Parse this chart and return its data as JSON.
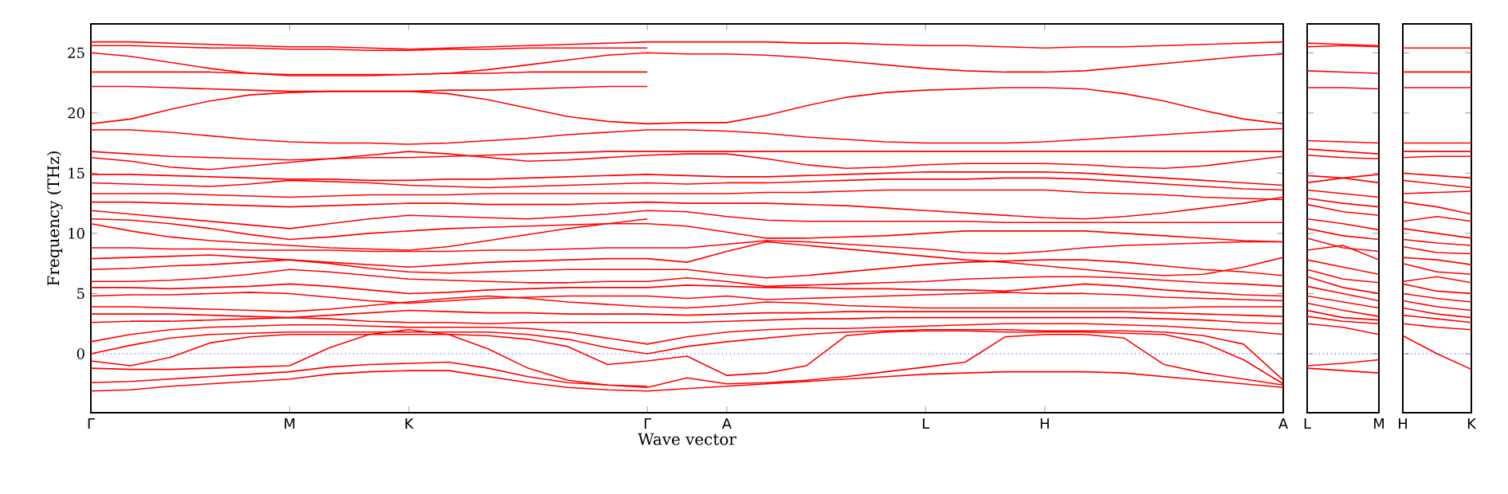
{
  "chart_data": [
    {
      "type": "line",
      "xlabel": "Wave vector",
      "ylabel": "Frequency (THz)",
      "ylim": [
        -4.9,
        27.4
      ],
      "categories": [
        "Γ",
        null,
        null,
        null,
        null,
        "M",
        null,
        null,
        "K",
        null,
        null,
        null,
        null,
        null,
        "Γ",
        null,
        "A",
        null,
        null,
        null,
        null,
        "L",
        null,
        null,
        "H",
        null,
        null,
        null,
        null,
        null,
        "A"
      ],
      "yticks": [
        0,
        5,
        10,
        15,
        20,
        25
      ],
      "ref_lines": [
        {
          "axis": "y",
          "value": 0,
          "color": "#0000ff",
          "line_style": "dotted"
        }
      ],
      "line_style": "solid",
      "series": [
        {
          "values": [
            25.9,
            25.9,
            25.8,
            25.7,
            25.6,
            25.5,
            25.5,
            25.4,
            25.3,
            25.4,
            25.5,
            25.6,
            25.7,
            25.8,
            25.9,
            25.9,
            25.9,
            25.9,
            25.8,
            25.8,
            25.7,
            25.6,
            25.6,
            25.5,
            25.4,
            25.5,
            25.5,
            25.6,
            25.7,
            25.8,
            25.9
          ],
          "color": "#ff0000"
        },
        {
          "values": [
            25.6,
            25.6,
            25.5,
            25.4,
            25.4,
            25.3,
            25.3,
            25.2,
            25.2,
            25.3,
            25.3,
            25.4,
            25.4,
            25.4,
            25.4,
            null,
            null,
            null,
            null,
            null,
            null,
            null,
            null,
            null,
            null,
            null,
            null,
            null,
            null,
            null,
            null
          ],
          "color": "#ff0000"
        },
        {
          "values": [
            25.0,
            24.7,
            24.2,
            23.7,
            23.3,
            23.1,
            23.1,
            23.1,
            23.2,
            23.3,
            23.6,
            24.0,
            24.4,
            24.8,
            25.0,
            24.9,
            24.9,
            24.8,
            24.6,
            24.3,
            24.0,
            23.7,
            23.5,
            23.4,
            23.4,
            23.5,
            23.8,
            24.1,
            24.4,
            24.7,
            24.9
          ],
          "color": "#ff0000"
        },
        {
          "values": [
            23.4,
            23.4,
            23.4,
            23.4,
            23.3,
            23.2,
            23.2,
            23.2,
            23.2,
            23.3,
            23.3,
            23.4,
            23.4,
            23.4,
            23.4,
            null,
            null,
            null,
            null,
            null,
            null,
            null,
            null,
            null,
            null,
            null,
            null,
            null,
            null,
            null,
            null
          ],
          "color": "#ff0000"
        },
        {
          "values": [
            22.2,
            22.2,
            22.1,
            22.0,
            21.9,
            21.8,
            21.8,
            21.8,
            21.8,
            21.9,
            21.9,
            22.0,
            22.1,
            22.2,
            22.2,
            null,
            null,
            null,
            null,
            null,
            null,
            null,
            null,
            null,
            null,
            null,
            null,
            null,
            null,
            null,
            null
          ],
          "color": "#ff0000"
        },
        {
          "values": [
            19.1,
            19.5,
            20.3,
            21.0,
            21.5,
            21.7,
            21.8,
            21.8,
            21.8,
            21.6,
            21.1,
            20.4,
            19.7,
            19.3,
            19.1,
            19.2,
            19.2,
            19.8,
            20.6,
            21.3,
            21.7,
            21.9,
            22.0,
            22.1,
            22.1,
            22.0,
            21.6,
            21.0,
            20.2,
            19.5,
            19.1
          ],
          "color": "#ff0000"
        },
        {
          "values": [
            18.6,
            18.6,
            18.4,
            18.1,
            17.8,
            17.6,
            17.5,
            17.5,
            17.4,
            17.5,
            17.7,
            17.9,
            18.2,
            18.4,
            18.6,
            18.6,
            18.5,
            18.3,
            18.0,
            17.8,
            17.6,
            17.5,
            17.5,
            17.5,
            17.6,
            17.8,
            18.0,
            18.2,
            18.4,
            18.6,
            18.7
          ],
          "color": "#ff0000"
        },
        {
          "values": [
            16.8,
            16.6,
            16.4,
            16.3,
            16.2,
            16.1,
            16.2,
            16.3,
            16.3,
            16.4,
            16.5,
            16.6,
            16.7,
            16.8,
            16.8,
            16.8,
            16.8,
            16.8,
            16.8,
            16.8,
            16.8,
            16.8,
            16.8,
            16.8,
            16.8,
            16.8,
            16.8,
            16.8,
            16.8,
            16.8,
            16.8
          ],
          "color": "#ff0000"
        },
        {
          "values": [
            16.3,
            16.0,
            15.5,
            15.3,
            15.6,
            15.9,
            16.2,
            16.5,
            16.8,
            16.6,
            16.3,
            16.0,
            16.1,
            16.3,
            16.5,
            16.6,
            16.6,
            16.2,
            15.7,
            15.4,
            15.5,
            15.7,
            15.8,
            15.8,
            15.8,
            15.7,
            15.5,
            15.4,
            15.6,
            16.0,
            16.4
          ],
          "color": "#ff0000"
        },
        {
          "values": [
            14.9,
            14.9,
            14.8,
            14.7,
            14.6,
            14.5,
            14.5,
            14.4,
            14.4,
            14.5,
            14.5,
            14.6,
            14.7,
            14.8,
            14.9,
            14.8,
            14.7,
            14.7,
            14.8,
            14.9,
            15.0,
            15.1,
            15.1,
            15.1,
            15.1,
            15.0,
            14.8,
            14.6,
            14.4,
            14.2,
            14.0
          ],
          "color": "#ff0000"
        },
        {
          "values": [
            14.2,
            14.1,
            14.0,
            13.9,
            14.1,
            14.4,
            14.3,
            14.2,
            14.0,
            13.9,
            13.8,
            13.9,
            14.0,
            14.1,
            14.2,
            14.1,
            14.2,
            14.2,
            14.3,
            14.4,
            14.5,
            14.5,
            14.5,
            14.6,
            14.6,
            14.5,
            14.3,
            14.1,
            13.9,
            13.7,
            13.6
          ],
          "color": "#ff0000"
        },
        {
          "values": [
            13.3,
            13.3,
            13.3,
            13.2,
            13.1,
            13.0,
            13.1,
            13.2,
            13.2,
            13.2,
            13.3,
            13.3,
            13.3,
            13.3,
            13.3,
            13.3,
            13.3,
            13.4,
            13.4,
            13.5,
            13.6,
            13.6,
            13.6,
            13.6,
            13.6,
            13.4,
            13.3,
            13.2,
            13.0,
            12.9,
            12.8
          ],
          "color": "#ff0000"
        },
        {
          "values": [
            12.6,
            12.6,
            12.5,
            12.4,
            12.3,
            12.2,
            12.3,
            12.4,
            12.5,
            12.5,
            12.4,
            12.4,
            12.4,
            12.5,
            12.6,
            12.5,
            12.5,
            12.5,
            12.4,
            12.3,
            12.1,
            11.9,
            11.7,
            11.5,
            11.3,
            11.2,
            11.4,
            11.7,
            12.1,
            12.5,
            13.0
          ],
          "color": "#ff0000"
        },
        {
          "values": [
            11.9,
            11.6,
            11.3,
            11.0,
            10.7,
            10.4,
            10.8,
            11.2,
            11.5,
            11.4,
            11.3,
            11.2,
            11.4,
            11.6,
            11.9,
            11.8,
            11.4,
            11.1,
            11.0,
            11.0,
            11.0,
            11.0,
            11.0,
            10.9,
            10.9,
            10.9,
            10.9,
            10.9,
            10.9,
            10.9,
            10.9
          ],
          "color": "#ff0000"
        },
        {
          "values": [
            11.2,
            11.1,
            10.8,
            10.4,
            9.9,
            9.5,
            9.7,
            10.0,
            10.2,
            10.4,
            10.5,
            10.6,
            10.7,
            10.8,
            10.8,
            10.6,
            10.1,
            9.6,
            9.6,
            9.7,
            9.8,
            10.0,
            10.2,
            10.2,
            10.2,
            10.2,
            10.0,
            9.8,
            9.6,
            9.4,
            9.3
          ],
          "color": "#ff0000"
        },
        {
          "values": [
            10.8,
            10.2,
            9.7,
            9.4,
            9.2,
            9.0,
            8.8,
            8.7,
            8.6,
            8.9,
            9.4,
            9.9,
            10.4,
            10.8,
            11.2,
            null,
            null,
            null,
            null,
            null,
            null,
            null,
            null,
            null,
            null,
            null,
            null,
            null,
            null,
            null,
            null
          ],
          "color": "#ff0000"
        },
        {
          "values": [
            8.8,
            8.8,
            8.7,
            8.7,
            8.6,
            8.6,
            8.6,
            8.5,
            8.5,
            8.5,
            8.6,
            8.6,
            8.7,
            8.8,
            8.8,
            8.8,
            9.1,
            9.4,
            9.3,
            9.1,
            8.9,
            8.7,
            8.4,
            8.3,
            8.5,
            8.8,
            9.0,
            9.1,
            9.2,
            9.3,
            9.3
          ],
          "color": "#ff0000"
        },
        {
          "values": [
            7.9,
            8.0,
            8.1,
            8.2,
            8.0,
            7.8,
            7.6,
            7.4,
            7.2,
            7.4,
            7.6,
            7.7,
            7.8,
            7.9,
            7.9,
            7.6,
            8.5,
            9.3,
            9.0,
            8.7,
            8.4,
            8.1,
            7.8,
            7.6,
            7.3,
            7.0,
            6.7,
            6.5,
            6.6,
            7.2,
            8.0
          ],
          "color": "#ff0000"
        },
        {
          "values": [
            7.0,
            7.1,
            7.3,
            7.4,
            7.6,
            7.8,
            7.5,
            7.1,
            6.8,
            6.7,
            6.8,
            6.9,
            7.0,
            7.0,
            7.0,
            7.0,
            6.6,
            6.3,
            6.5,
            6.8,
            7.1,
            7.4,
            7.6,
            7.7,
            7.8,
            7.8,
            7.6,
            7.3,
            7.0,
            6.8,
            6.5
          ],
          "color": "#ff0000"
        },
        {
          "values": [
            6.0,
            6.0,
            6.1,
            6.3,
            6.6,
            7.0,
            6.8,
            6.5,
            6.2,
            6.1,
            6.0,
            5.9,
            5.9,
            6.0,
            6.0,
            6.3,
            6.0,
            5.6,
            5.7,
            5.8,
            5.9,
            6.0,
            6.2,
            6.3,
            6.4,
            6.4,
            6.3,
            6.1,
            5.9,
            5.8,
            5.6
          ],
          "color": "#ff0000"
        },
        {
          "values": [
            5.5,
            5.5,
            5.4,
            5.5,
            5.6,
            5.8,
            5.6,
            5.3,
            5.0,
            5.1,
            5.3,
            5.4,
            5.5,
            5.5,
            5.5,
            5.7,
            5.6,
            5.5,
            5.5,
            5.4,
            5.4,
            5.3,
            5.3,
            5.2,
            5.5,
            5.8,
            5.6,
            5.3,
            5.1,
            4.9,
            4.8
          ],
          "color": "#ff0000"
        },
        {
          "values": [
            4.8,
            4.9,
            4.9,
            5.0,
            5.1,
            5.0,
            4.7,
            4.4,
            4.2,
            4.4,
            4.6,
            4.7,
            4.8,
            4.8,
            4.8,
            4.6,
            4.8,
            4.5,
            4.6,
            4.7,
            4.8,
            4.9,
            5.0,
            5.1,
            5.0,
            5.0,
            4.9,
            4.7,
            4.6,
            4.5,
            4.4
          ],
          "color": "#ff0000"
        },
        {
          "values": [
            3.9,
            3.9,
            3.8,
            3.7,
            3.6,
            3.5,
            3.7,
            4.0,
            4.3,
            4.6,
            4.8,
            4.6,
            4.3,
            4.1,
            3.9,
            3.8,
            4.0,
            4.3,
            4.2,
            4.0,
            3.9,
            3.8,
            3.8,
            3.8,
            3.8,
            3.8,
            3.8,
            3.8,
            3.9,
            3.9,
            3.9
          ],
          "color": "#ff0000"
        },
        {
          "values": [
            3.3,
            3.3,
            3.3,
            3.2,
            3.1,
            3.0,
            3.2,
            3.4,
            3.6,
            3.5,
            3.4,
            3.4,
            3.3,
            3.3,
            3.3,
            3.2,
            3.3,
            3.4,
            3.4,
            3.5,
            3.5,
            3.5,
            3.5,
            3.5,
            3.5,
            3.5,
            3.5,
            3.4,
            3.3,
            3.2,
            3.1
          ],
          "color": "#ff0000"
        },
        {
          "values": [
            2.6,
            2.7,
            2.7,
            2.8,
            2.9,
            3.0,
            2.9,
            2.7,
            2.6,
            2.6,
            2.5,
            2.6,
            2.6,
            2.6,
            2.6,
            2.6,
            2.7,
            2.8,
            2.9,
            2.9,
            3.0,
            3.0,
            3.0,
            3.0,
            3.0,
            3.0,
            3.0,
            2.9,
            2.8,
            2.6,
            2.5
          ],
          "color": "#ff0000"
        },
        {
          "values": [
            1.0,
            1.6,
            2.0,
            2.2,
            2.3,
            2.4,
            2.4,
            2.3,
            2.2,
            2.2,
            2.2,
            2.1,
            1.8,
            1.3,
            0.8,
            1.4,
            1.8,
            2.0,
            2.1,
            2.1,
            2.2,
            2.3,
            2.4,
            2.5,
            2.5,
            2.5,
            2.4,
            2.3,
            2.1,
            1.9,
            1.6
          ],
          "color": "#ff0000"
        },
        {
          "values": [
            0.0,
            0.7,
            1.3,
            1.6,
            1.7,
            1.8,
            1.8,
            1.8,
            1.8,
            1.8,
            1.8,
            1.6,
            1.2,
            0.5,
            0.0,
            0.6,
            1.0,
            1.3,
            1.6,
            1.8,
            1.9,
            2.0,
            2.0,
            2.0,
            1.9,
            1.9,
            1.9,
            1.8,
            1.5,
            0.8,
            -2.2
          ],
          "color": "#ff0000"
        },
        {
          "values": [
            -0.6,
            -1.0,
            -0.3,
            0.9,
            1.4,
            1.6,
            1.6,
            1.6,
            1.6,
            1.6,
            1.5,
            1.2,
            0.6,
            -0.9,
            -0.6,
            -0.2,
            -1.8,
            -1.6,
            -1.0,
            1.5,
            1.8,
            1.9,
            1.9,
            1.8,
            1.8,
            1.8,
            1.7,
            1.6,
            0.9,
            -0.5,
            -2.5
          ],
          "color": "#ff0000"
        },
        {
          "values": [
            -1.2,
            -1.3,
            -1.3,
            -1.2,
            -1.1,
            -1.0,
            0.5,
            1.6,
            2.0,
            1.6,
            0.4,
            -1.2,
            -2.2,
            -2.6,
            -2.8,
            -2.0,
            -2.5,
            -2.4,
            -2.2,
            -1.9,
            -1.5,
            -1.1,
            -0.7,
            1.4,
            1.6,
            1.6,
            1.3,
            -0.9,
            -1.6,
            -2.1,
            -2.6
          ],
          "color": "#ff0000"
        },
        {
          "values": [
            -3.1,
            -3.0,
            -2.7,
            -2.5,
            -2.3,
            -2.1,
            -1.7,
            -1.5,
            -1.4,
            -1.4,
            -1.9,
            -2.4,
            -2.8,
            -3.0,
            -3.1,
            -2.9,
            -2.7,
            -2.5,
            -2.3,
            -2.1,
            -1.9,
            -1.7,
            -1.6,
            -1.5,
            -1.5,
            -1.5,
            -1.6,
            -1.9,
            -2.2,
            -2.5,
            -2.8
          ],
          "color": "#ff0000"
        },
        {
          "values": [
            -2.4,
            -2.3,
            -2.1,
            -1.9,
            -1.7,
            -1.5,
            -1.1,
            -0.9,
            -0.8,
            -0.7,
            -1.2,
            -1.9,
            -2.4,
            -2.6,
            -2.7,
            null,
            null,
            null,
            null,
            null,
            null,
            null,
            null,
            null,
            null,
            null,
            null,
            null,
            null,
            null,
            null
          ],
          "color": "#ff0000"
        }
      ]
    },
    {
      "type": "line",
      "ylim": [
        -4.9,
        27.4
      ],
      "tick_labels": "x",
      "categories": [
        "L",
        null,
        "M"
      ],
      "yticks": [
        0,
        5,
        10,
        15,
        20,
        25
      ],
      "ref_lines": [
        {
          "axis": "y",
          "value": 0,
          "color": "#0000ff",
          "line_style": "dotted"
        }
      ],
      "line_style": "solid",
      "series": [
        {
          "values": [
            25.8,
            25.7,
            25.6
          ],
          "color": "#ff0000"
        },
        {
          "values": [
            25.5,
            25.6,
            25.5
          ],
          "color": "#ff0000"
        },
        {
          "values": [
            23.5,
            23.4,
            23.3
          ],
          "color": "#ff0000"
        },
        {
          "values": [
            22.1,
            22.1,
            22.0
          ],
          "color": "#ff0000"
        },
        {
          "values": [
            17.7,
            17.6,
            17.5
          ],
          "color": "#ff0000"
        },
        {
          "values": [
            17.0,
            16.8,
            16.6
          ],
          "color": "#ff0000"
        },
        {
          "values": [
            16.5,
            16.3,
            16.2
          ],
          "color": "#ff0000"
        },
        {
          "values": [
            14.8,
            14.6,
            14.2
          ],
          "color": "#ff0000"
        },
        {
          "values": [
            14.2,
            14.6,
            14.9
          ],
          "color": "#ff0000"
        },
        {
          "values": [
            13.6,
            13.3,
            13.0
          ],
          "color": "#ff0000"
        },
        {
          "values": [
            12.9,
            12.5,
            12.2
          ],
          "color": "#ff0000"
        },
        {
          "values": [
            12.4,
            11.8,
            11.5
          ],
          "color": "#ff0000"
        },
        {
          "values": [
            11.2,
            10.8,
            10.3
          ],
          "color": "#ff0000"
        },
        {
          "values": [
            10.4,
            9.8,
            9.5
          ],
          "color": "#ff0000"
        },
        {
          "values": [
            9.6,
            8.8,
            8.5
          ],
          "color": "#ff0000"
        },
        {
          "values": [
            8.6,
            9.0,
            7.8
          ],
          "color": "#ff0000"
        },
        {
          "values": [
            7.8,
            7.2,
            6.6
          ],
          "color": "#ff0000"
        },
        {
          "values": [
            7.0,
            6.2,
            5.9
          ],
          "color": "#ff0000"
        },
        {
          "values": [
            6.4,
            5.5,
            5.0
          ],
          "color": "#ff0000"
        },
        {
          "values": [
            5.6,
            5.0,
            4.4
          ],
          "color": "#ff0000"
        },
        {
          "values": [
            4.8,
            4.3,
            3.8
          ],
          "color": "#ff0000"
        },
        {
          "values": [
            4.2,
            3.6,
            3.1
          ],
          "color": "#ff0000"
        },
        {
          "values": [
            3.6,
            3.0,
            2.8
          ],
          "color": "#ff0000"
        },
        {
          "values": [
            3.1,
            2.7,
            2.5
          ],
          "color": "#ff0000"
        },
        {
          "values": [
            2.5,
            2.2,
            1.6
          ],
          "color": "#ff0000"
        },
        {
          "values": [
            -1.0,
            -0.8,
            -0.5
          ],
          "color": "#ff0000"
        },
        {
          "values": [
            -1.2,
            -1.4,
            -1.6
          ],
          "color": "#ff0000"
        }
      ]
    },
    {
      "type": "line",
      "ylim": [
        -4.9,
        27.4
      ],
      "tick_labels": "x",
      "categories": [
        "H",
        null,
        "K"
      ],
      "yticks": [
        0,
        5,
        10,
        15,
        20,
        25
      ],
      "ref_lines": [
        {
          "axis": "y",
          "value": 0,
          "color": "#0000ff",
          "line_style": "dotted"
        }
      ],
      "line_style": "solid",
      "series": [
        {
          "values": [
            25.4,
            25.4,
            25.4
          ],
          "color": "#ff0000"
        },
        {
          "values": [
            23.4,
            23.4,
            23.4
          ],
          "color": "#ff0000"
        },
        {
          "values": [
            22.1,
            22.1,
            22.1
          ],
          "color": "#ff0000"
        },
        {
          "values": [
            17.5,
            17.5,
            17.5
          ],
          "color": "#ff0000"
        },
        {
          "values": [
            16.8,
            16.8,
            16.8
          ],
          "color": "#ff0000"
        },
        {
          "values": [
            16.3,
            16.4,
            16.4
          ],
          "color": "#ff0000"
        },
        {
          "values": [
            15.0,
            14.8,
            14.6
          ],
          "color": "#ff0000"
        },
        {
          "values": [
            14.4,
            14.1,
            13.8
          ],
          "color": "#ff0000"
        },
        {
          "values": [
            13.3,
            13.4,
            13.5
          ],
          "color": "#ff0000"
        },
        {
          "values": [
            12.6,
            12.2,
            11.6
          ],
          "color": "#ff0000"
        },
        {
          "values": [
            11.0,
            11.4,
            11.0
          ],
          "color": "#ff0000"
        },
        {
          "values": [
            10.4,
            10.0,
            9.6
          ],
          "color": "#ff0000"
        },
        {
          "values": [
            9.5,
            9.2,
            9.0
          ],
          "color": "#ff0000"
        },
        {
          "values": [
            8.9,
            8.4,
            8.3
          ],
          "color": "#ff0000"
        },
        {
          "values": [
            8.0,
            7.8,
            7.4
          ],
          "color": "#ff0000"
        },
        {
          "values": [
            7.5,
            6.8,
            6.6
          ],
          "color": "#ff0000"
        },
        {
          "values": [
            6.0,
            6.4,
            5.9
          ],
          "color": "#ff0000"
        },
        {
          "values": [
            5.8,
            5.2,
            5.0
          ],
          "color": "#ff0000"
        },
        {
          "values": [
            5.0,
            4.6,
            4.3
          ],
          "color": "#ff0000"
        },
        {
          "values": [
            4.4,
            3.9,
            3.6
          ],
          "color": "#ff0000"
        },
        {
          "values": [
            3.8,
            3.3,
            3.0
          ],
          "color": "#ff0000"
        },
        {
          "values": [
            3.2,
            2.9,
            2.6
          ],
          "color": "#ff0000"
        },
        {
          "values": [
            2.5,
            2.2,
            2.0
          ],
          "color": "#ff0000"
        },
        {
          "values": [
            1.5,
            0.0,
            -1.3
          ],
          "color": "#ff0000"
        }
      ]
    }
  ]
}
